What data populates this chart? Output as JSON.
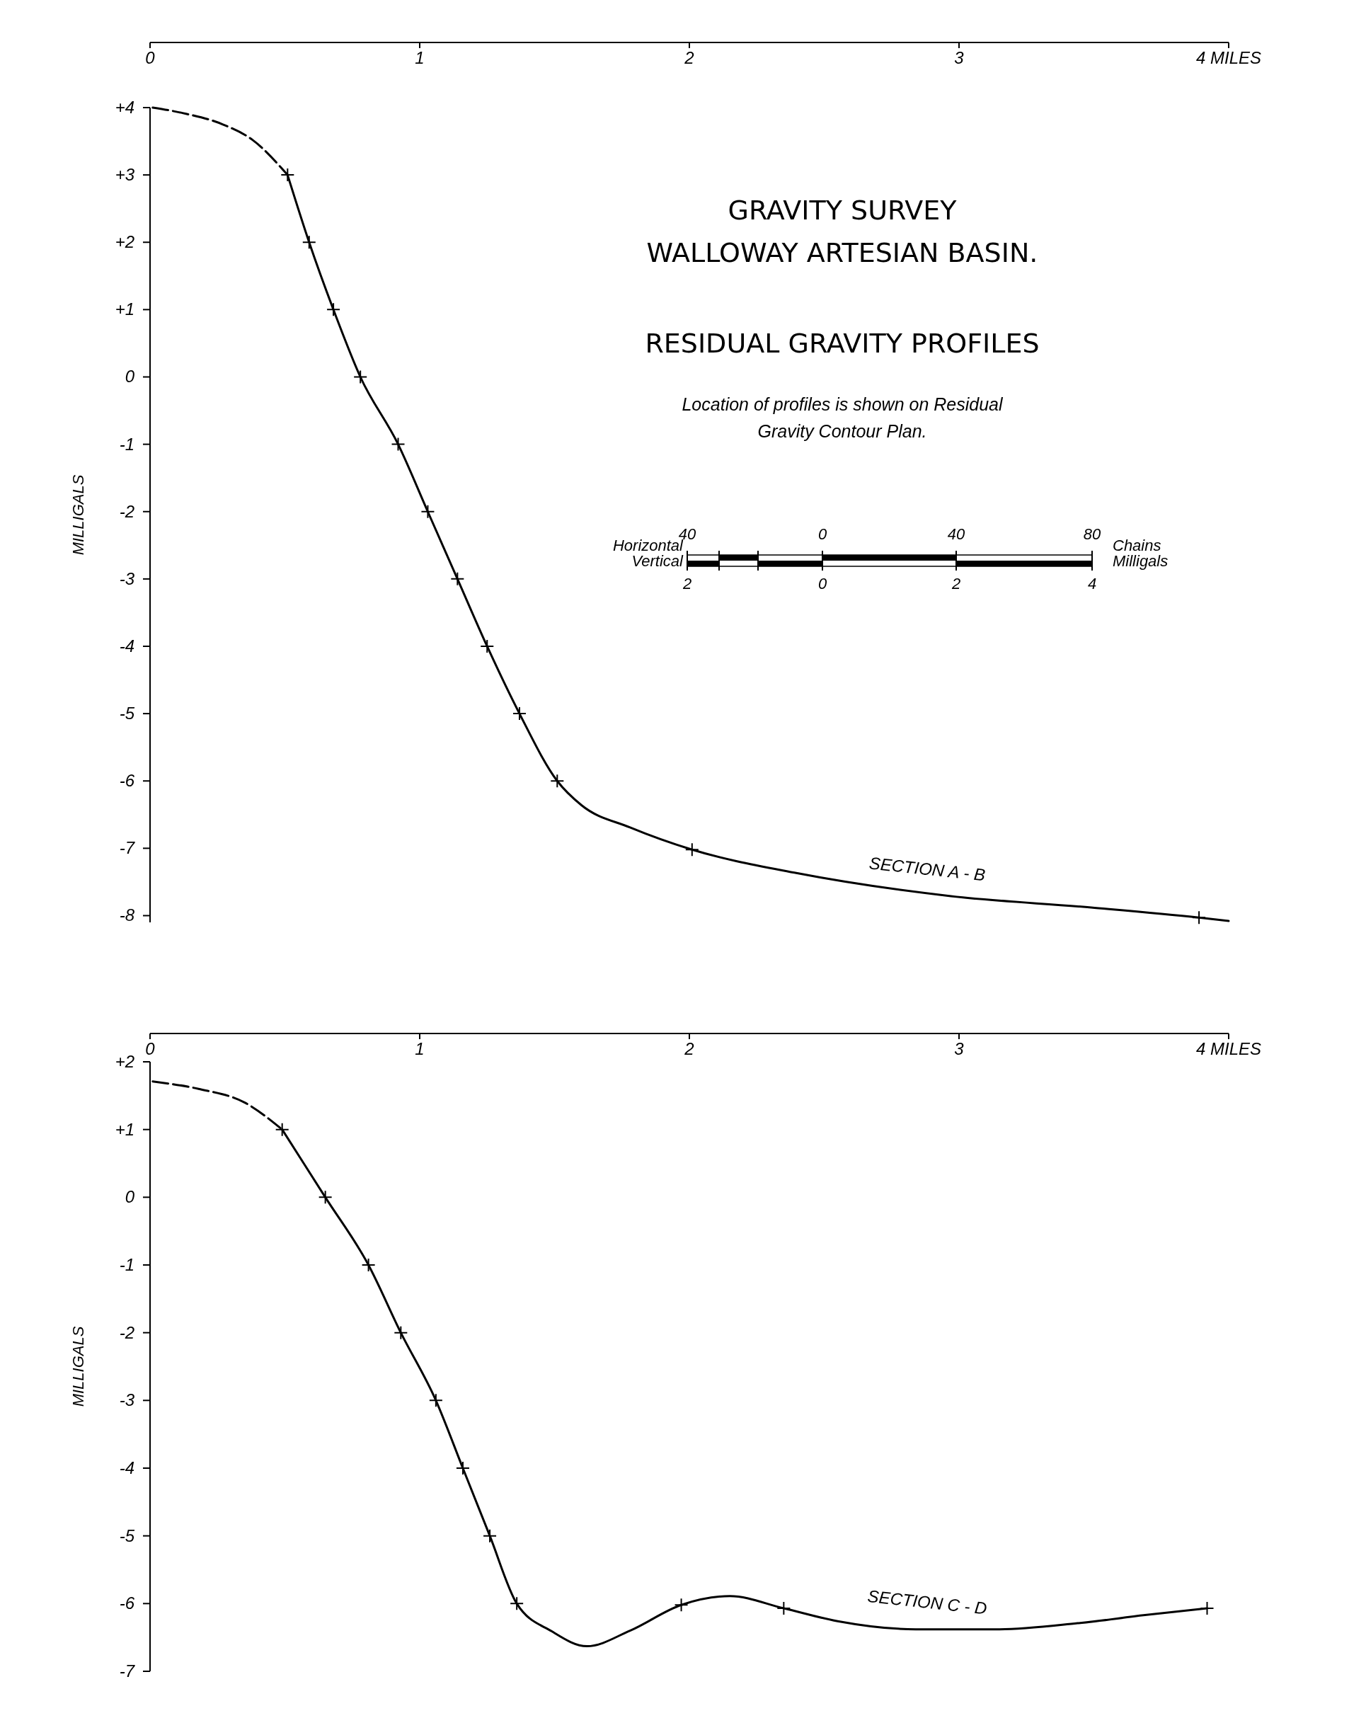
{
  "chart_data": [
    {
      "type": "line",
      "title": "GRAVITY SURVEY",
      "subtitle": "WALLOWAY ARTESIAN BASIN.",
      "ylabel": "MILLIGALS",
      "xlim": [
        0,
        4
      ],
      "ylim": [
        -8.1,
        4
      ],
      "xticks": [
        0,
        1,
        2,
        3,
        {
          "value": 4,
          "label": "4 MILES"
        }
      ],
      "yticks": [
        -8,
        -7,
        -6,
        -5,
        -4,
        -3,
        -2,
        -1,
        0,
        {
          "value": 1,
          "label": "+1"
        },
        {
          "value": 2,
          "label": "+2"
        },
        {
          "value": 3,
          "label": "+3"
        },
        {
          "value": 4,
          "label": "+4"
        }
      ],
      "grid": false,
      "legend": false,
      "annotations": [
        "RESIDUAL GRAVITY PROFILES",
        "Location of profiles is shown on Residual Gravity Contour Plan.",
        "Horizontal",
        "Vertical",
        "40",
        "0",
        "40",
        "80",
        "Chains",
        "2",
        "0",
        "2",
        "4",
        "Milligals"
      ],
      "series": [
        {
          "type": "line",
          "line_style": "dashed",
          "color": "#000000",
          "x": [
            0.01,
            0.12,
            0.27,
            0.38,
            0.51
          ],
          "values": [
            4.0,
            3.92,
            3.75,
            3.52,
            3.0
          ]
        },
        {
          "type": "line",
          "line_style": "solid",
          "name": "SECTION A - B",
          "color": "#000000",
          "x": [
            0.51,
            0.59,
            0.68,
            0.78,
            0.92,
            1.03,
            1.14,
            1.25,
            1.37,
            1.51,
            1.6,
            1.78,
            2.01,
            2.4,
            2.97,
            3.49,
            3.89,
            4.0
          ],
          "values": [
            3.0,
            2.0,
            1.0,
            0,
            -1,
            -2,
            -3,
            -4,
            -5,
            -6,
            -6.36,
            -6.69,
            -7.02,
            -7.37,
            -7.71,
            -7.88,
            -8.03,
            -8.08
          ]
        },
        {
          "type": "scatter",
          "marker": "cross",
          "color": "#000000",
          "x": [
            0.51,
            0.59,
            0.68,
            0.78,
            0.92,
            1.03,
            1.14,
            1.25,
            1.37,
            1.51,
            2.01,
            3.89
          ],
          "values": [
            3.0,
            2.0,
            1.0,
            0,
            -1,
            -2,
            -3,
            -4,
            -5,
            -6,
            -7.02,
            -8.03
          ]
        }
      ]
    },
    {
      "type": "line",
      "ylabel": "MILLIGALS",
      "xlim": [
        0,
        4
      ],
      "ylim": [
        -7,
        2
      ],
      "xticks": [
        0,
        1,
        2,
        3,
        {
          "value": 4,
          "label": "4 MILES"
        }
      ],
      "yticks": [
        -7,
        -6,
        -5,
        -4,
        -3,
        -2,
        -1,
        0,
        {
          "value": 1,
          "label": "+1"
        },
        {
          "value": 2,
          "label": "+2"
        }
      ],
      "grid": false,
      "legend": false,
      "series": [
        {
          "type": "line",
          "line_style": "dashed",
          "color": "#000000",
          "x": [
            0.01,
            0.18,
            0.35,
            0.49
          ],
          "values": [
            1.71,
            1.6,
            1.4,
            1.0
          ]
        },
        {
          "type": "line",
          "line_style": "solid",
          "name": "SECTION C - D",
          "color": "#000000",
          "x": [
            0.49,
            0.65,
            0.81,
            0.93,
            1.06,
            1.16,
            1.26,
            1.36,
            1.49,
            1.62,
            1.78,
            1.97,
            2.15,
            2.35,
            2.55,
            2.84,
            3.15,
            3.44,
            3.69,
            3.92
          ],
          "values": [
            1.0,
            0,
            -1,
            -2,
            -3,
            -4,
            -5,
            -6,
            -6.41,
            -6.63,
            -6.4,
            -6.02,
            -5.89,
            -6.07,
            -6.26,
            -6.38,
            -6.38,
            -6.29,
            -6.17,
            -6.07
          ]
        },
        {
          "type": "scatter",
          "marker": "cross",
          "color": "#000000",
          "x": [
            0.49,
            0.65,
            0.81,
            0.93,
            1.06,
            1.16,
            1.26,
            1.36,
            1.97,
            2.35,
            3.92
          ],
          "values": [
            1.0,
            0,
            -1,
            -2,
            -3,
            -4,
            -5,
            -6,
            -6.02,
            -6.07,
            -6.07
          ]
        }
      ]
    }
  ]
}
